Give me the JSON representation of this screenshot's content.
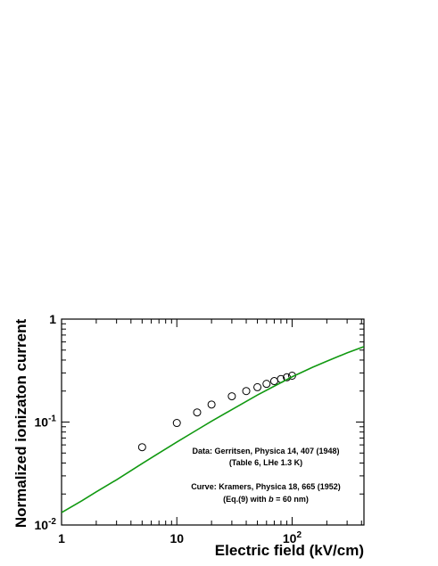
{
  "chart_data": {
    "type": "scatter",
    "xlabel": "Electric field (kV/cm)",
    "ylabel": "Normalized ionizaton current",
    "xscale": "log",
    "yscale": "log",
    "xlim": [
      1,
      420
    ],
    "ylim": [
      0.01,
      1
    ],
    "grid": false,
    "x_ticks": [
      {
        "value": 1,
        "label": "1"
      },
      {
        "value": 10,
        "label": "10"
      },
      {
        "value": 100,
        "label": "10",
        "sup": "2"
      }
    ],
    "y_ticks": [
      {
        "value": 0.01,
        "label": "10",
        "sup": "-2"
      },
      {
        "value": 0.1,
        "label": "10",
        "sup": "-1"
      },
      {
        "value": 1,
        "label": "1"
      }
    ],
    "series": [
      {
        "kind": "markers",
        "marker": "open-circle",
        "color": "#000000",
        "x": [
          5,
          10,
          15,
          20,
          30,
          40,
          50,
          60,
          70,
          80,
          90,
          100
        ],
        "y": [
          0.057,
          0.098,
          0.124,
          0.148,
          0.178,
          0.2,
          0.218,
          0.235,
          0.25,
          0.262,
          0.272,
          0.282
        ]
      },
      {
        "kind": "line",
        "color": "#119911",
        "x": [
          1,
          1.5,
          2,
          3,
          5,
          7,
          10,
          15,
          20,
          30,
          50,
          70,
          100,
          150,
          200,
          300,
          420
        ],
        "y": [
          0.0132,
          0.0172,
          0.021,
          0.0275,
          0.0395,
          0.05,
          0.064,
          0.084,
          0.102,
          0.132,
          0.183,
          0.223,
          0.275,
          0.34,
          0.39,
          0.47,
          0.54
        ]
      }
    ],
    "annotations": [
      {
        "text": "Data: Gerritsen, Physica 14, 407 (1948)"
      },
      {
        "text": "(Table 6, LHe 1.3 K)"
      },
      {
        "text": "Curve: Kramers, Physica 18, 665 (1952)"
      },
      {
        "text_before": "(Eq.(9) with ",
        "text_italic": "b",
        "text_after": " = 60 nm)"
      }
    ]
  }
}
